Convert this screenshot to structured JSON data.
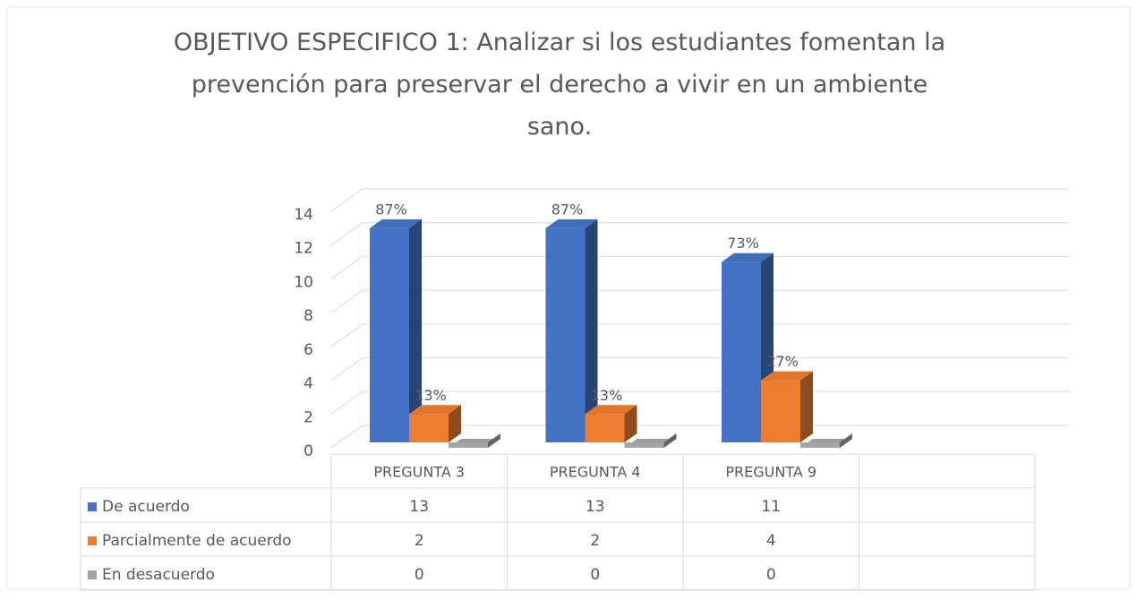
{
  "chart_data": {
    "type": "bar3d",
    "title": "OBJETIVO ESPECIFICO 1: Analizar si los estudiantes fomentan la prevención para preservar el derecho a vivir en un ambiente sano.",
    "categories": [
      "PREGUNTA 3",
      "PREGUNTA 4",
      "PREGUNTA 9",
      null
    ],
    "series": [
      {
        "name": "De acuerdo",
        "color": "#4472c4",
        "values": [
          13,
          13,
          11,
          null
        ],
        "labels": [
          "87%",
          "87%",
          "73%",
          null
        ]
      },
      {
        "name": "Parcialmente de acuerdo",
        "color": "#ed7d31",
        "values": [
          2,
          2,
          4,
          null
        ],
        "labels": [
          "13%",
          "13%",
          "27%",
          null
        ]
      },
      {
        "name": "En desacuerdo",
        "color": "#a5a5a5",
        "values": [
          0,
          0,
          0,
          null
        ]
      }
    ],
    "ylim": [
      0,
      14
    ],
    "yticks": [
      0,
      2,
      4,
      6,
      8,
      10,
      12,
      14
    ],
    "grid": true,
    "data_table": true
  }
}
